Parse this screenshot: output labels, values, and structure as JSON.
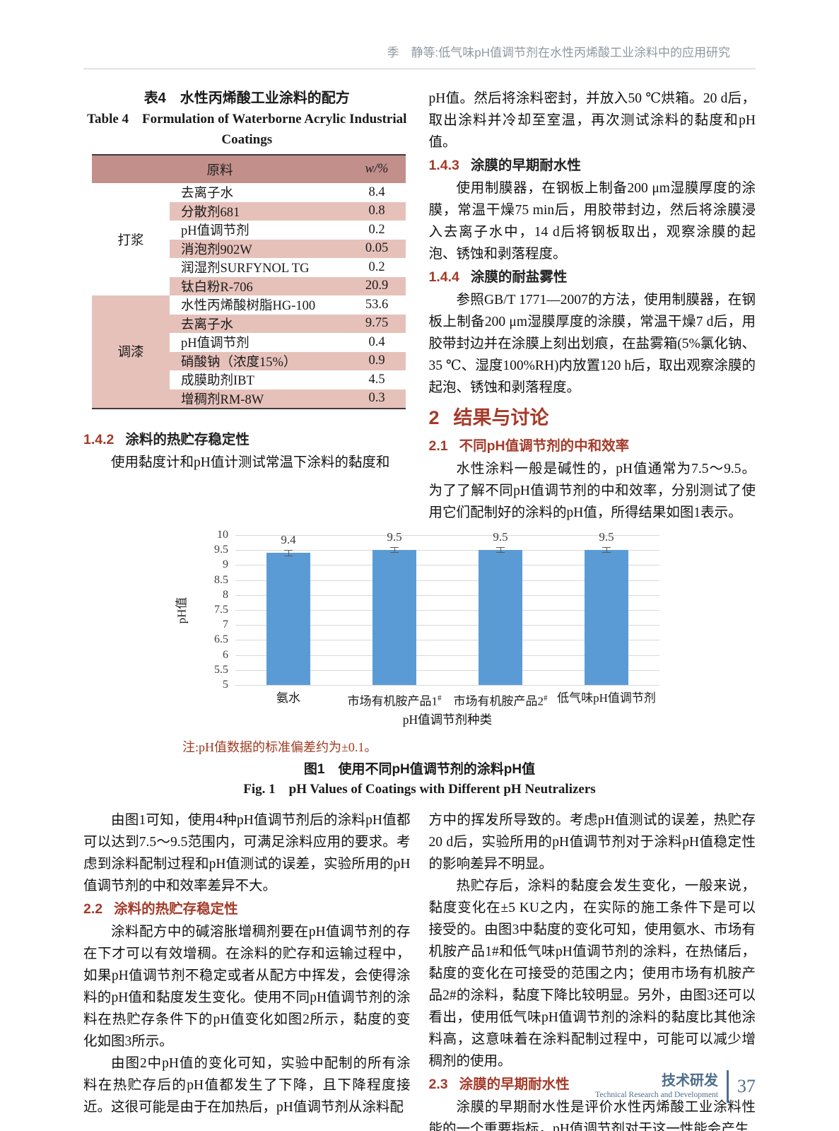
{
  "header": {
    "running_title": "季　静等:低气味pH值调节剂在水性丙烯酸工业涂料中的应用研究"
  },
  "left_top": {
    "table": {
      "title_zh": "表4　水性丙烯酸工业涂料的配方",
      "title_en1": "Table 4　Formulation of Waterborne Acrylic Industrial",
      "title_en2": "Coatings",
      "header": {
        "material": "原料",
        "value": "w/%"
      },
      "groups": [
        {
          "name": "打浆",
          "rows": [
            {
              "material": "去离子水",
              "value": "8.4"
            },
            {
              "material": "分散剂681",
              "value": "0.8"
            },
            {
              "material": "pH值调节剂",
              "value": "0.2"
            },
            {
              "material": "消泡剂902W",
              "value": "0.05"
            },
            {
              "material": "润湿剂SURFYNOL TG",
              "value": "0.2"
            },
            {
              "material": "钛白粉R-706",
              "value": "20.9"
            }
          ]
        },
        {
          "name": "调漆",
          "rows": [
            {
              "material": "水性丙烯酸树脂HG-100",
              "value": "53.6"
            },
            {
              "material": "去离子水",
              "value": "9.75"
            },
            {
              "material": "pH值调节剂",
              "value": "0.4"
            },
            {
              "material": "硝酸钠（浓度15%）",
              "value": "0.9"
            },
            {
              "material": "成膜助剂IBT",
              "value": "4.5"
            },
            {
              "material": "增稠剂RM-8W",
              "value": "0.3"
            }
          ]
        }
      ]
    },
    "sec142": {
      "num": "1.4.2",
      "title": "涂料的热贮存稳定性"
    },
    "p142": "使用黏度计和pH值计测试常温下涂料的黏度和"
  },
  "right_top": {
    "p_cont": "pH值。然后将涂料密封，并放入50 ℃烘箱。20 d后，取出涂料并冷却至室温，再次测试涂料的黏度和pH值。",
    "sec143": {
      "num": "1.4.3",
      "title": "涂膜的早期耐水性"
    },
    "p143": "使用制膜器，在钢板上制备200 μm湿膜厚度的涂膜，常温干燥75 min后，用胶带封边，然后将涂膜浸入去离子水中，14 d后将钢板取出，观察涂膜的起泡、锈蚀和剥落程度。",
    "sec144": {
      "num": "1.4.4",
      "title": "涂膜的耐盐雾性"
    },
    "p144": "参照GB/T 1771—2007的方法，使用制膜器，在钢板上制备200 μm湿膜厚度的涂膜，常温干燥7 d后，用胶带封边并在涂膜上刻出划痕，在盐雾箱(5%氯化钠、35 ℃、湿度100%RH)内放置120 h后，取出观察涂膜的起泡、锈蚀和剥落程度。",
    "sec2": {
      "num": "2",
      "title": "结果与讨论"
    },
    "sec21": {
      "num": "2.1",
      "title": "不同pH值调节剂的中和效率"
    },
    "p21": "水性涂料一般是碱性的，pH值通常为7.5～9.5。为了了解不同pH值调节剂的中和效率，分别测试了使用它们配制好的涂料的pH值，所得结果如图1表示。"
  },
  "chart_data": {
    "type": "bar",
    "categories": [
      "氨水",
      "市场有机胺产品1#",
      "市场有机胺产品2#",
      "低气味pH值调节剂"
    ],
    "values": [
      9.4,
      9.5,
      9.5,
      9.5
    ],
    "data_labels": [
      "9.4",
      "9.5",
      "9.5",
      "9.5"
    ],
    "error": 0.1,
    "title": "",
    "xlabel": "pH值调节剂种类",
    "ylabel": "pH值",
    "ylim": [
      5,
      10
    ],
    "ytick_step": 0.5,
    "grid": true,
    "legend": "none"
  },
  "figure": {
    "note": "注:pH值数据的标准偏差约为±0.1。",
    "caption_zh": "图1　使用不同pH值调节剂的涂料pH值",
    "caption_en": "Fig. 1　pH Values of Coatings with Different pH Neutralizers"
  },
  "left_bottom": {
    "p1": "由图1可知，使用4种pH值调节剂后的涂料pH值都可以达到7.5～9.5范围内，可满足涂料应用的要求。考虑到涂料配制过程和pH值测试的误差，实验所用的pH值调节剂的中和效率差异不大。",
    "sec22": {
      "num": "2.2",
      "title": "涂料的热贮存稳定性"
    },
    "p2": "涂料配方中的碱溶胀增稠剂要在pH值调节剂的存在下才可以有效增稠。在涂料的贮存和运输过程中，如果pH值调节剂不稳定或者从配方中挥发，会使得涂料的pH值和黏度发生变化。使用不同pH值调节剂的涂料在热贮存条件下的pH值变化如图2所示，黏度的变化如图3所示。",
    "p3": "由图2中pH值的变化可知，实验中配制的所有涂料在热贮存后的pH值都发生了下降，且下降程度接近。这很可能是由于在加热后，pH值调节剂从涂料配"
  },
  "right_bottom": {
    "p1": "方中的挥发所导致的。考虑pH值测试的误差，热贮存20 d后，实验所用的pH值调节剂对于涂料pH值稳定性的影响差异不明显。",
    "p2": "热贮存后，涂料的黏度会发生变化，一般来说，黏度变化在±5 KU之内，在实际的施工条件下是可以接受的。由图3中黏度的变化可知，使用氨水、市场有机胺产品1#和低气味pH值调节剂的涂料，在热储后，黏度的变化在可接受的范围之内；使用市场有机胺产品2#的涂料，黏度下降比较明显。另外，由图3还可以看出，使用低气味pH值调节剂的涂料的黏度比其他涂料高，这意味着在涂料配制过程中，可能可以减少增稠剂的使用。",
    "sec23": {
      "num": "2.3",
      "title": "涂膜的早期耐水性"
    },
    "p4": "涂膜的早期耐水性是评价水性丙烯酸工业涂料性能的一个重要指标，pH值调节剂对于这一性能会产生"
  },
  "footer": {
    "section_zh": "技术研发",
    "section_en": "Technical Research and Development",
    "page": "37"
  },
  "colors": {
    "accent_red": "#a43a29",
    "table_header_bg": "#c28f8b",
    "table_stripe_bg": "#e6c1ba",
    "bar_blue": "#5b9bd5",
    "footer_blue": "#4e6e8c",
    "running_header_gray": "#8f99a1"
  }
}
